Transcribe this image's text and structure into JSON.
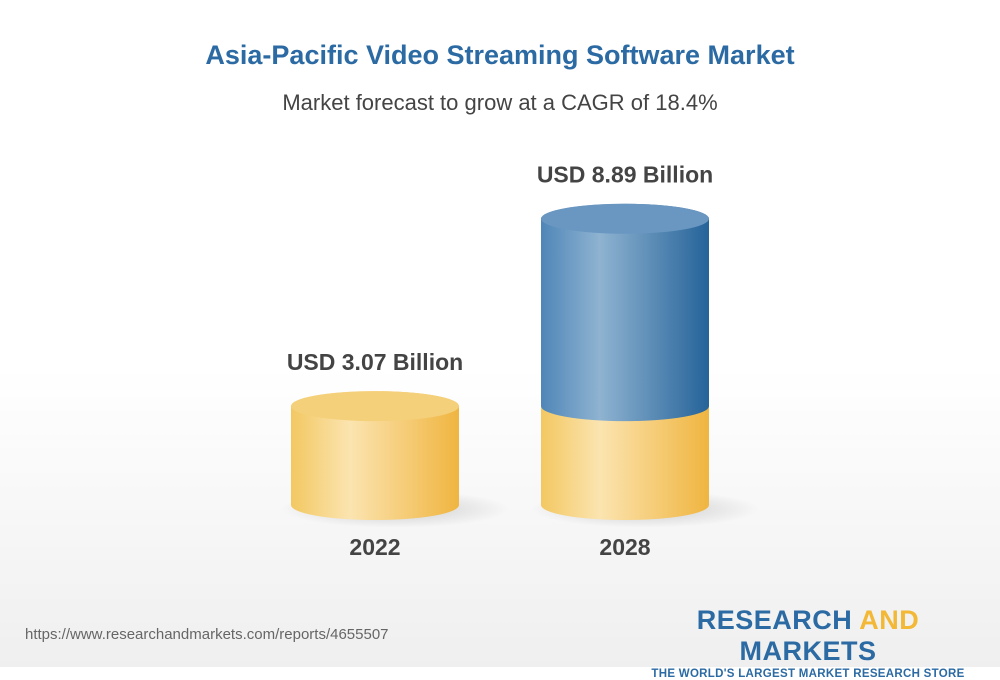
{
  "chart_data": {
    "type": "bar",
    "style": "3d-cylinder",
    "title": "Asia-Pacific Video Streaming Software Market",
    "subtitle": "Market forecast to grow at a CAGR of 18.4%",
    "categories": [
      "2022",
      "2028"
    ],
    "values": [
      3.07,
      8.89
    ],
    "data_labels": [
      "USD 3.07 Billion",
      "USD 8.89 Billion"
    ],
    "unit": "USD Billion",
    "colors": {
      "base": "#f2c45a",
      "growth": "#2f6fa5"
    }
  },
  "footer": {
    "url": "https://www.researchandmarkets.com/reports/4655507",
    "logo_word1": "RESEARCH",
    "logo_word2": "AND",
    "logo_word3": "MARKETS",
    "logo_tagline": "THE WORLD'S LARGEST MARKET RESEARCH STORE"
  }
}
